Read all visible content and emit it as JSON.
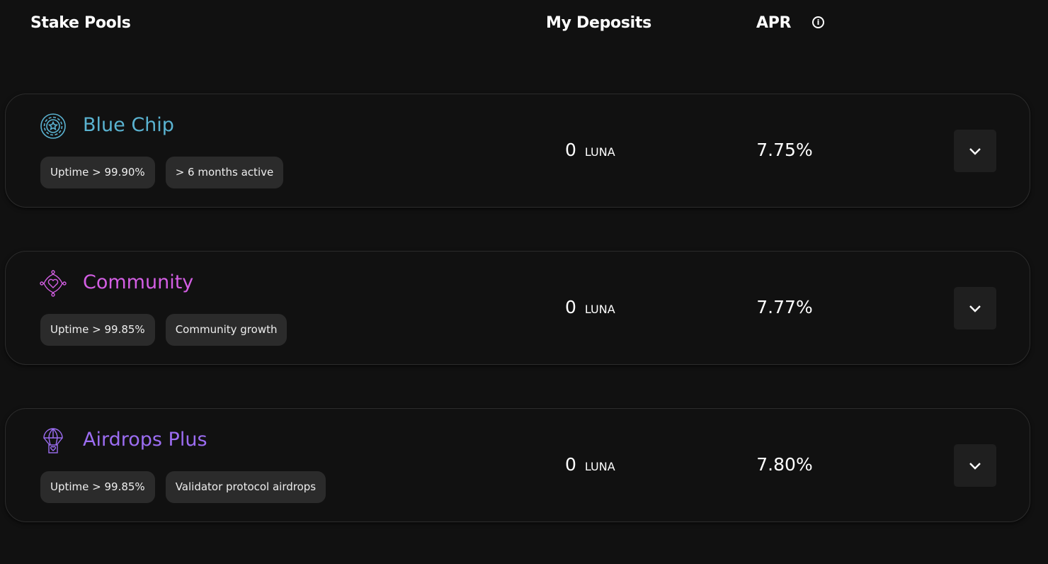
{
  "header": {
    "pools": "Stake Pools",
    "deposits": "My Deposits",
    "apr": "APR",
    "info_icon": "info-icon"
  },
  "pools": [
    {
      "name": "Blue Chip",
      "color": "#5ab3d1",
      "icon": "poker-chip-star-icon",
      "tags": [
        "Uptime > 99.90%",
        "> 6 months active"
      ],
      "deposit": "0",
      "unit": "LUNA",
      "apr": "7.75%"
    },
    {
      "name": "Community",
      "color": "#d35ee3",
      "icon": "heart-network-icon",
      "tags": [
        "Uptime > 99.85%",
        "Community growth"
      ],
      "deposit": "0",
      "unit": "LUNA",
      "apr": "7.77%"
    },
    {
      "name": "Airdrops Plus",
      "color": "#9c6df2",
      "icon": "parachute-icon",
      "tags": [
        "Uptime > 99.85%",
        "Validator protocol airdrops"
      ],
      "deposit": "0",
      "unit": "LUNA",
      "apr": "7.80%"
    }
  ]
}
